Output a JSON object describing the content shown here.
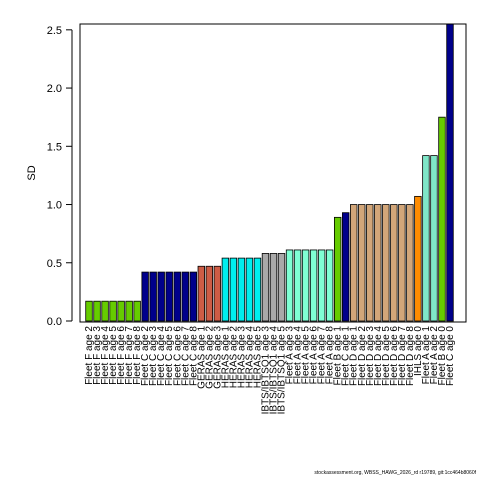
{
  "chart_data": {
    "type": "bar",
    "ylabel": "SD",
    "ylim": [
      0,
      2.55
    ],
    "yticks": [
      "0.0",
      "0.5",
      "1.0",
      "1.5",
      "2.0",
      "2.5"
    ],
    "grid": false,
    "categories": [
      "Fleet F age 2",
      "Fleet F age 3",
      "Fleet F age 4",
      "Fleet F age 5",
      "Fleet F age 6",
      "Fleet F age 7",
      "Fleet F age 8",
      "Fleet C age 2",
      "Fleet C age 3",
      "Fleet C age 4",
      "Fleet C age 5",
      "Fleet C age 6",
      "Fleet C age 7",
      "Fleet C age 8",
      "GERAS age 1",
      "GERAS age 2",
      "GERAS age 3",
      "HERAS age 1",
      "HERAS age 2",
      "HERAS age 3",
      "HERAS age 4",
      "HERAS age 5",
      "IBTS/IBTSQ1 age 3",
      "IBTS/IBTSQ1 age 4",
      "IBTS/IBTSQ1 age 5",
      "Fleet A age 3",
      "Fleet A age 4",
      "Fleet A age 5",
      "Fleet A age 6",
      "Fleet A age 7",
      "Fleet A age 8",
      "Fleet B age 1",
      "Fleet C age 1",
      "Fleet D age 1",
      "Fleet D age 2",
      "Fleet D age 3",
      "Fleet D age 4",
      "Fleet D age 5",
      "Fleet D age 6",
      "Fleet D age 7",
      "Fleet D age 8",
      "IHLS age 0",
      "Fleet A age 1",
      "Fleet A age 2",
      "Fleet B age 0",
      "Fleet C age 0"
    ],
    "values": [
      0.17,
      0.17,
      0.17,
      0.17,
      0.17,
      0.17,
      0.17,
      0.42,
      0.42,
      0.42,
      0.42,
      0.42,
      0.42,
      0.42,
      0.47,
      0.47,
      0.47,
      0.54,
      0.54,
      0.54,
      0.54,
      0.54,
      0.58,
      0.58,
      0.58,
      0.61,
      0.61,
      0.61,
      0.61,
      0.61,
      0.61,
      0.89,
      0.93,
      1.0,
      1.0,
      1.0,
      1.0,
      1.0,
      1.0,
      1.0,
      1.0,
      1.07,
      1.42,
      1.42,
      1.75,
      2.57
    ],
    "colors": [
      "#66CC00",
      "#66CC00",
      "#66CC00",
      "#66CC00",
      "#66CC00",
      "#66CC00",
      "#66CC00",
      "#00008B",
      "#00008B",
      "#00008B",
      "#00008B",
      "#00008B",
      "#00008B",
      "#00008B",
      "#CD5C45",
      "#CD5C45",
      "#CD5C45",
      "#00EEEE",
      "#00EEEE",
      "#00EEEE",
      "#00EEEE",
      "#00EEEE",
      "#A9A9A9",
      "#A9A9A9",
      "#A9A9A9",
      "#7FFFD4",
      "#7FFFD4",
      "#7FFFD4",
      "#7FFFD4",
      "#7FFFD4",
      "#7FFFD4",
      "#66CC00",
      "#00008B",
      "#D2A679",
      "#D2A679",
      "#D2A679",
      "#D2A679",
      "#D2A679",
      "#D2A679",
      "#D2A679",
      "#D2A679",
      "#FF8C00",
      "#7FE6C8",
      "#7FE6C8",
      "#66CC00",
      "#00008B"
    ]
  },
  "footer": "stockassessment.org, WBSS_HAWG_2026_rd r19789, git:1cc464b8060f"
}
